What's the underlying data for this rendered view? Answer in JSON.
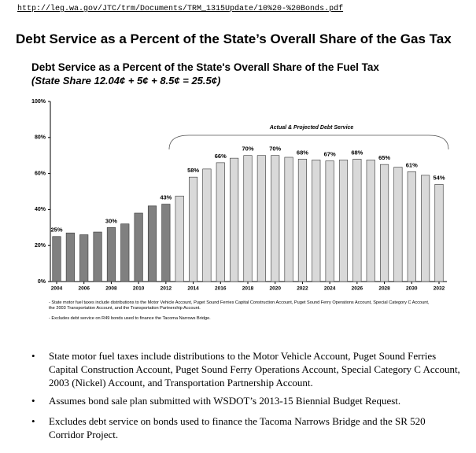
{
  "url": "http://leg.wa.gov/JTC/trm/Documents/TRM_1315Update/10%20-%20Bonds.pdf",
  "heading": "Debt Service as a Percent of the State’s Overall Share of the Gas Tax",
  "chart_data": {
    "type": "bar",
    "title": "Debt Service as a Percent of the State's Overall Share of the Fuel Tax",
    "subtitle": "(State Share 12.04¢ + 5¢ + 8.5¢ = 25.5¢)",
    "annotation": "Actual & Projected Debt Service",
    "categories": [
      "2004",
      null,
      "2006",
      null,
      "2008",
      null,
      "2010",
      null,
      "2012",
      null,
      "2014",
      null,
      "2016",
      null,
      "2018",
      null,
      "2020",
      null,
      "2022",
      null,
      "2024",
      null,
      "2026",
      null,
      "2028",
      null,
      "2030",
      null,
      "2032"
    ],
    "values": [
      25,
      27,
      26,
      27.5,
      30,
      32,
      38,
      42,
      43,
      47.5,
      58,
      62.5,
      66,
      68.5,
      70,
      70,
      70,
      69,
      68,
      67.5,
      67,
      67.5,
      68,
      67.5,
      65,
      63.5,
      61,
      59,
      54
    ],
    "value_labels": [
      "25%",
      null,
      null,
      null,
      "30%",
      null,
      null,
      null,
      "43%",
      null,
      "58%",
      null,
      "66%",
      null,
      "70%",
      null,
      "70%",
      null,
      "68%",
      null,
      "67%",
      null,
      "68%",
      null,
      "65%",
      null,
      "61%",
      null,
      "54%"
    ],
    "colors": [
      "#808080",
      "#808080",
      "#808080",
      "#808080",
      "#808080",
      "#808080",
      "#808080",
      "#808080",
      "#808080",
      "#d9d9d9",
      "#d9d9d9",
      "#d9d9d9",
      "#d9d9d9",
      "#d9d9d9",
      "#d9d9d9",
      "#d9d9d9",
      "#d9d9d9",
      "#d9d9d9",
      "#d9d9d9",
      "#d9d9d9",
      "#d9d9d9",
      "#d9d9d9",
      "#d9d9d9",
      "#d9d9d9",
      "#d9d9d9",
      "#d9d9d9",
      "#d9d9d9",
      "#d9d9d9",
      "#d9d9d9"
    ],
    "ylim": [
      0,
      100
    ],
    "yticks": [
      {
        "value": 0,
        "label": "0%"
      },
      {
        "value": 20,
        "label": "20%"
      },
      {
        "value": 40,
        "label": "40%"
      },
      {
        "value": 60,
        "label": "60%"
      },
      {
        "value": 80,
        "label": "80%"
      },
      {
        "value": 100,
        "label": "100%"
      }
    ],
    "grid": false,
    "notes": [
      "- State motor fuel taxes include distributions to the Motor Vehicle Account, Puget Sound Ferries Capital Construction Account, Puget Sound Ferry Operations Account, Special Category C Account, the 2003 Transportation Account, and the Transportation Partnership Account.",
      "- Excludes debt service on R49 bonds used to finance the Tacoma Narrows Bridge."
    ]
  },
  "bullets": [
    "State motor fuel taxes include distributions to the Motor Vehicle Account, Puget Sound Ferries Capital Construction Account, Puget Sound Ferry Operations Account, Special Category C Account, 2003 (Nickel) Account, and Transportation Partnership Account.",
    "Assumes bond sale plan submitted with WSDOT’s 2013-15 Biennial Budget Request.",
    "Excludes debt service on bonds used to finance the Tacoma Narrows Bridge and the SR 520 Corridor Project."
  ]
}
